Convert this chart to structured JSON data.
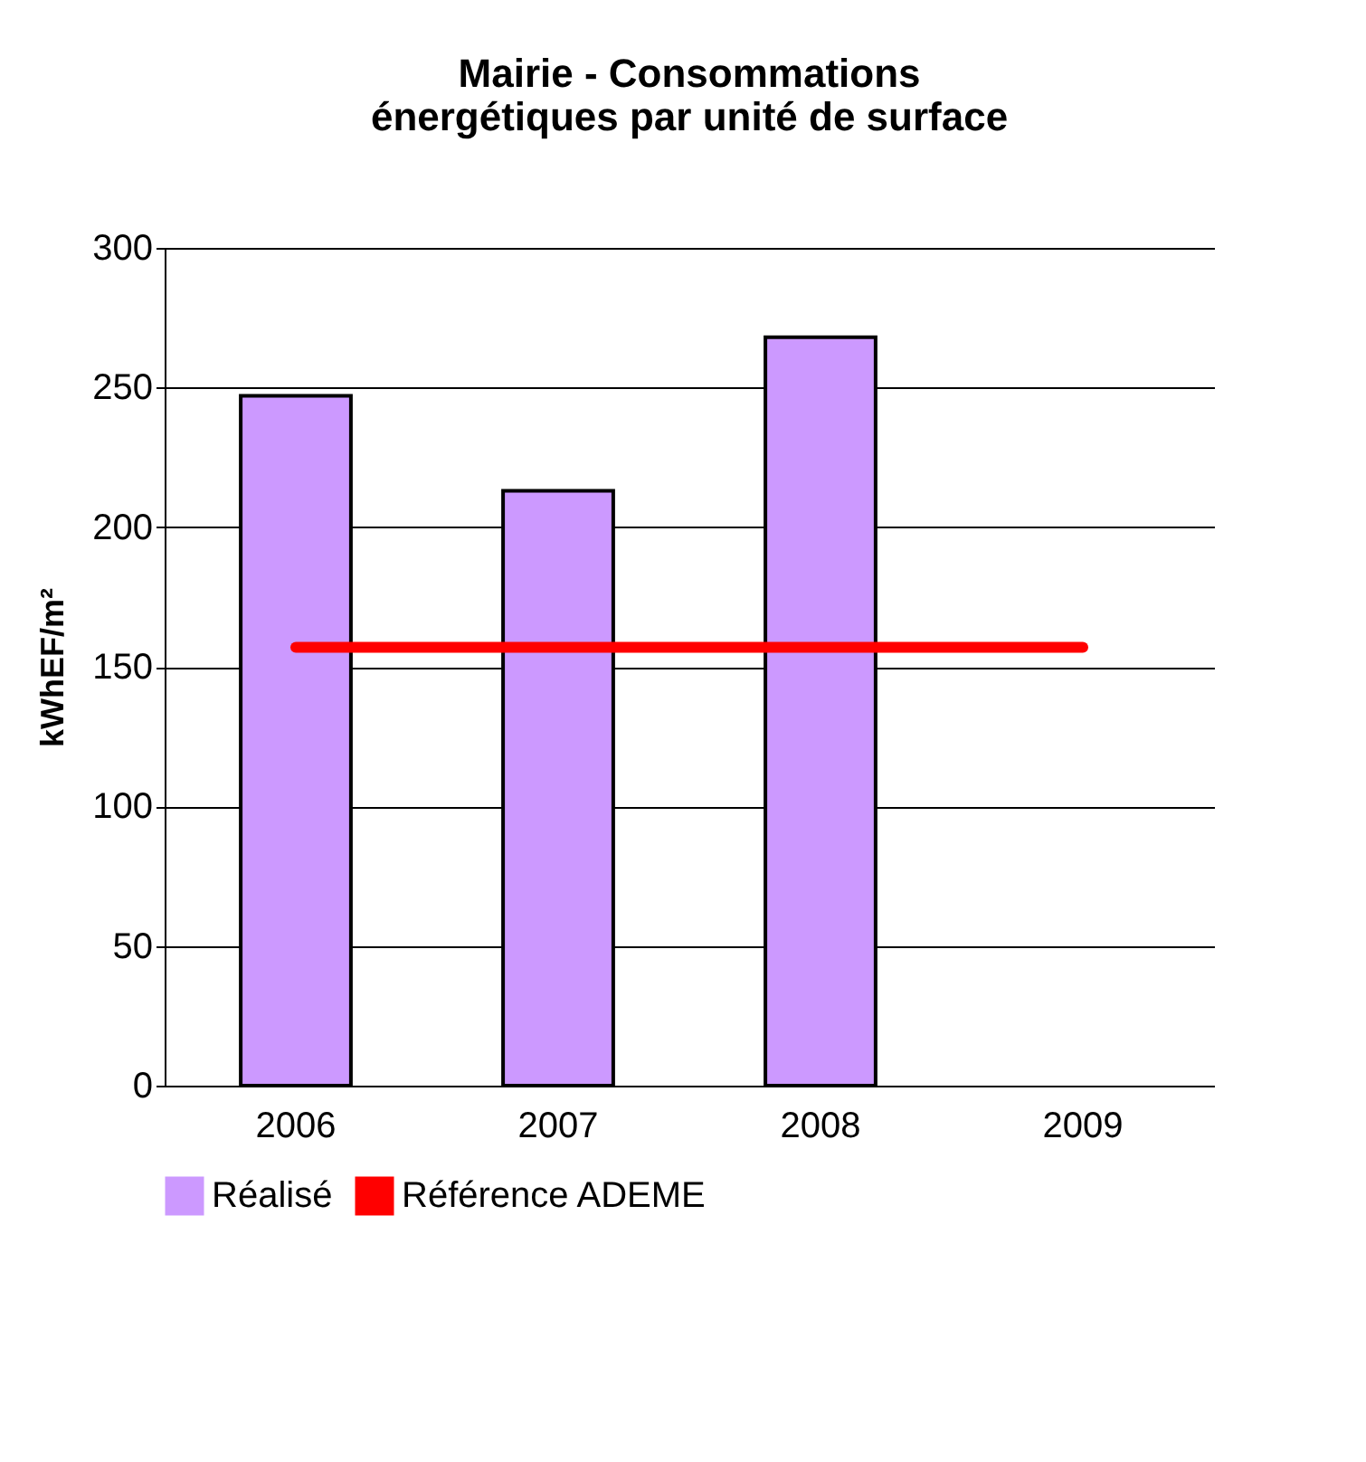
{
  "chart_data": {
    "type": "bar",
    "title": [
      "Mairie - Consommations",
      "énergétiques par unité de surface"
    ],
    "ylabel": "kWhEF/m²",
    "categories": [
      "2006",
      "2007",
      "2008",
      "2009"
    ],
    "series": [
      {
        "name": "Réalisé",
        "color": "#cc99ff",
        "values": [
          247,
          213,
          268,
          null
        ]
      },
      {
        "name": "Référence ADEME",
        "type": "line",
        "color": "#ff0000",
        "values": [
          157,
          157,
          157,
          157
        ]
      }
    ],
    "ylim": [
      0,
      300
    ],
    "yticks": [
      0,
      50,
      100,
      150,
      200,
      250,
      300
    ],
    "grid": "y",
    "legend": "bottom",
    "marker": "none"
  }
}
